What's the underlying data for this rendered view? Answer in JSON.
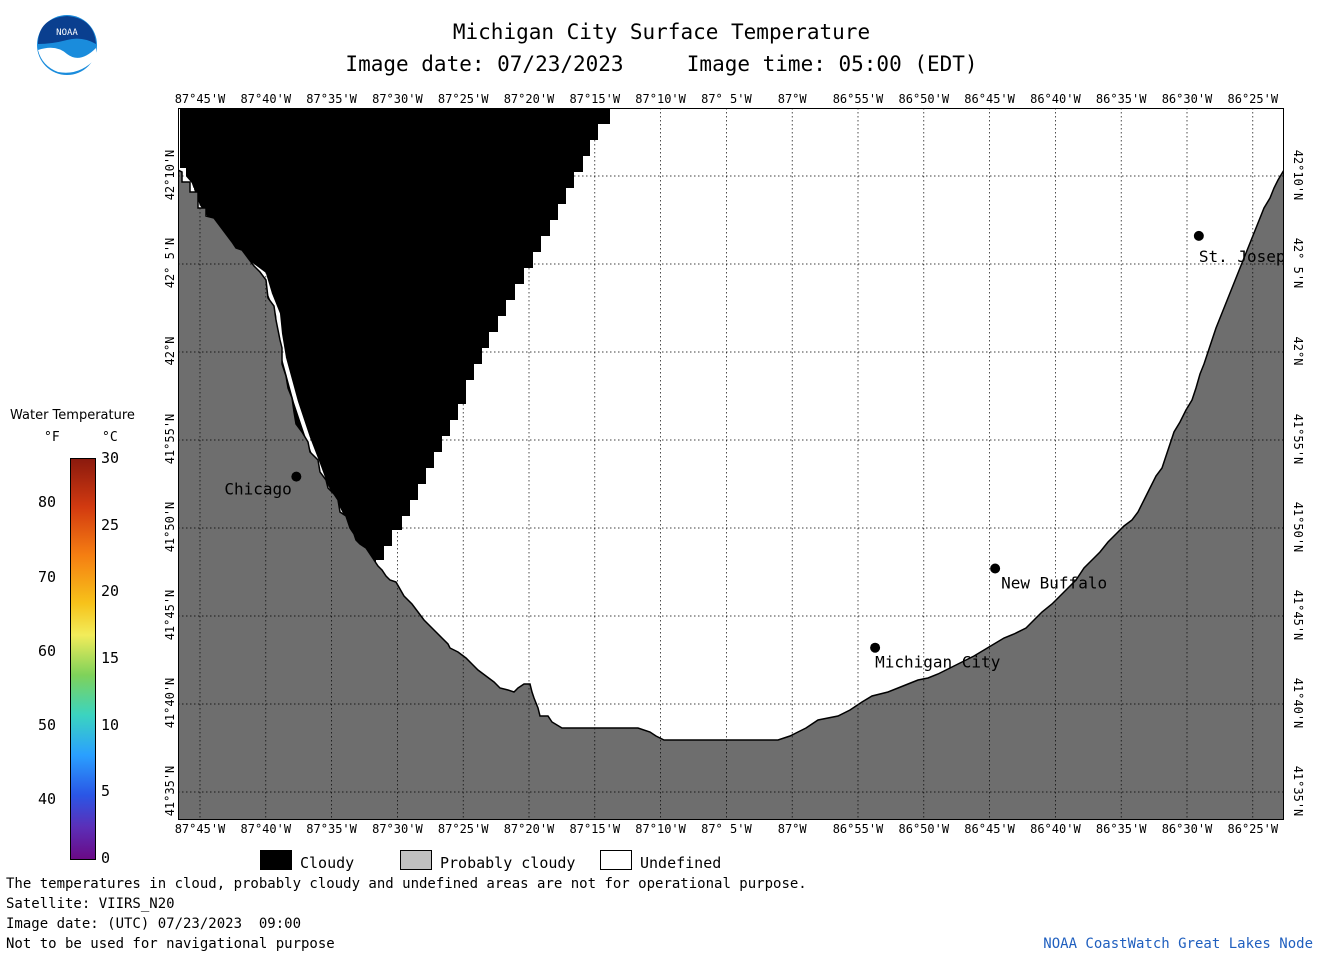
{
  "title": "Michigan City Surface Temperature",
  "subtitle": "Image date: 07/23/2023     Image time: 05:00 (EDT)",
  "logo_text": "NOAA",
  "lon_ticks": [
    "87°45'W",
    "87°40'W",
    "87°35'W",
    "87°30'W",
    "87°25'W",
    "87°20'W",
    "87°15'W",
    "87°10'W",
    "87° 5'W",
    "87°W",
    "86°55'W",
    "86°50'W",
    "86°45'W",
    "86°40'W",
    "86°35'W",
    "86°30'W",
    "86°25'W"
  ],
  "lat_ticks": [
    "42°10'N",
    "42° 5'N",
    "42°N",
    "41°55'N",
    "41°50'N",
    "41°45'N",
    "41°40'N",
    "41°35'N"
  ],
  "cities": [
    {
      "name": "St. Joseph",
      "lon": -86.485,
      "lat": 42.11
    },
    {
      "name": "Chicago",
      "lon": -87.628,
      "lat": 41.882
    },
    {
      "name": "New Buffalo",
      "lon": -86.743,
      "lat": 41.795
    },
    {
      "name": "Michigan City",
      "lon": -86.895,
      "lat": 41.72
    }
  ],
  "legend": {
    "title": "Water Temperature",
    "unit_f": "°F",
    "unit_c": "°C",
    "f_ticks": [
      "40",
      "50",
      "60",
      "70",
      "80"
    ],
    "c_ticks": [
      "0",
      "5",
      "10",
      "15",
      "20",
      "25",
      "30"
    ]
  },
  "categories": [
    {
      "label": "Cloudy",
      "color": "#000000"
    },
    {
      "label": "Probably cloudy",
      "color": "#c0c0c0"
    },
    {
      "label": "Undefined",
      "color": "#ffffff"
    }
  ],
  "colors": {
    "land": "#6e6e6e",
    "cloud": "#000000",
    "water_undefined": "#ffffff",
    "attribution": "#1f5fbf"
  },
  "footer": {
    "note": "The temperatures in cloud, probably cloudy and undefined areas are not for operational purpose.",
    "satellite": "Satellite: VIIRS_N20",
    "utc_date": "Image date: (UTC) 07/23/2023  09:00",
    "nav": "Not to be used for navigational purpose",
    "attribution": "NOAA CoastWatch Great Lakes Node"
  }
}
